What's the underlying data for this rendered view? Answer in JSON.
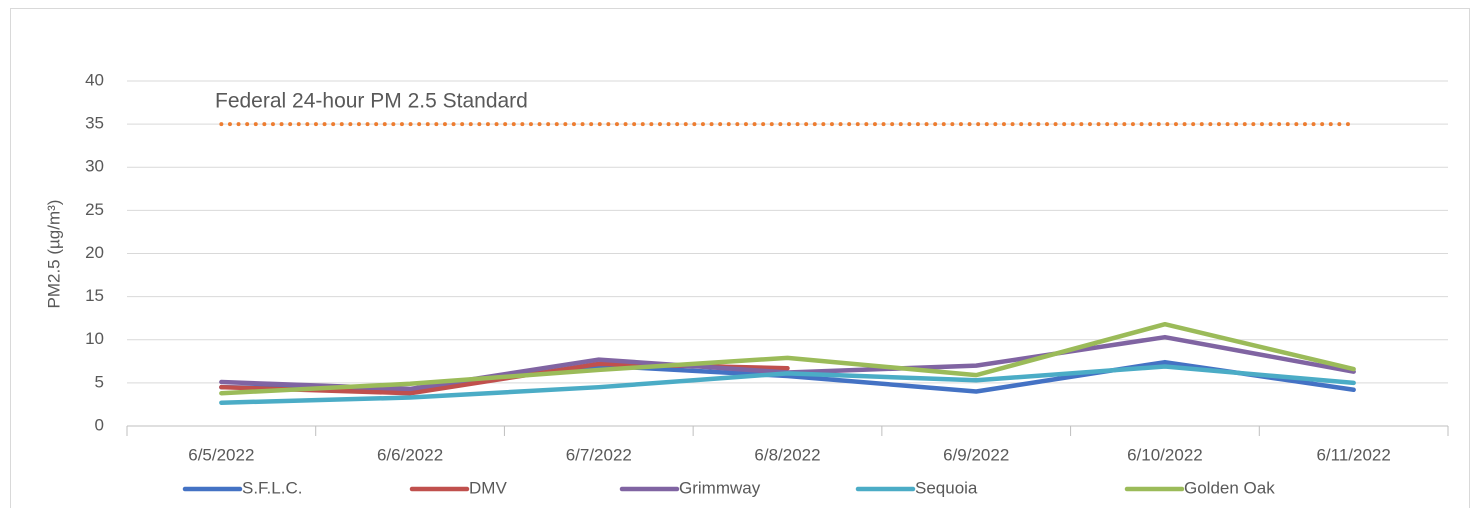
{
  "chart_data": {
    "type": "line",
    "y_label": "PM2.5 (µg/m³)",
    "categories": [
      "6/5/2022",
      "6/6/2022",
      "6/7/2022",
      "6/8/2022",
      "6/9/2022",
      "6/10/2022",
      "6/11/2022"
    ],
    "series": [
      {
        "name": "S.F.L.C.",
        "color": "#4472c4",
        "values": [
          4.5,
          4.2,
          7.0,
          5.8,
          4.0,
          7.4,
          4.2
        ]
      },
      {
        "name": "DMV",
        "color": "#c0504d",
        "values": [
          4.5,
          3.8,
          7.2,
          6.7,
          null,
          null,
          null
        ]
      },
      {
        "name": "Grimmway",
        "color": "#8064a2",
        "values": [
          5.1,
          4.3,
          7.7,
          6.2,
          7.0,
          10.3,
          6.3
        ]
      },
      {
        "name": "Sequoia",
        "color": "#4bacc6",
        "values": [
          2.7,
          3.3,
          4.5,
          6.1,
          5.3,
          6.9,
          5.0
        ]
      },
      {
        "name": "Golden Oak",
        "color": "#9bbb59",
        "values": [
          3.8,
          4.9,
          6.5,
          7.9,
          5.9,
          11.8,
          6.6
        ]
      }
    ],
    "standard": {
      "label": "Federal 24-hour PM 2.5 Standard",
      "value": 35,
      "color": "#ed7d31"
    },
    "ylim": [
      0,
      40
    ],
    "yticks": [
      0,
      5,
      10,
      15,
      20,
      25,
      30,
      35,
      40
    ],
    "grid": true,
    "legend": "bottom"
  }
}
